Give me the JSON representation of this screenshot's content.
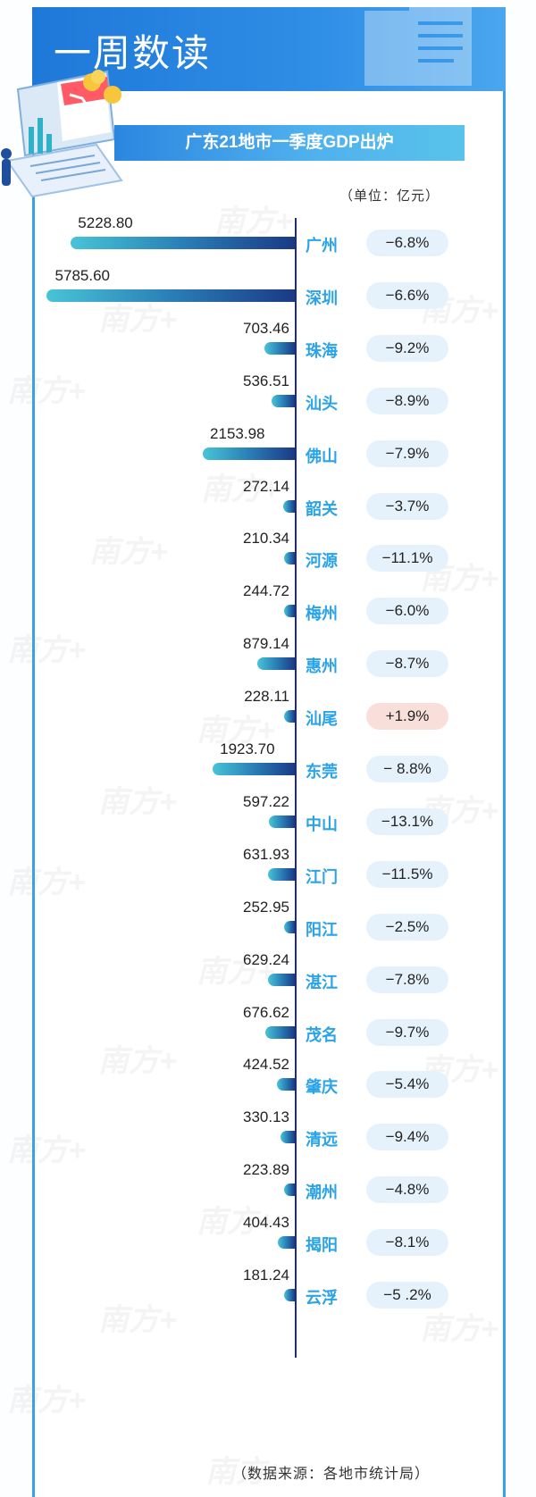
{
  "header": {
    "title": "一周数读"
  },
  "banner": {
    "title": "广东21地市一季度GDP出炉"
  },
  "unit_note": "（单位：亿元）",
  "source_note": "（数据来源：各地市统计局）",
  "watermark": "南方+",
  "colors": {
    "header_blue": "#1e78d8",
    "banner_start": "#2b86e0",
    "banner_end": "#59c3ea",
    "bar_start": "#48c4d6",
    "bar_end": "#1a3a86",
    "city_text": "#2aa3e8",
    "pill_negative": "#e6f2fb",
    "pill_positive": "#f8dfd9"
  },
  "chart_data": {
    "type": "bar",
    "orientation": "horizontal",
    "title": "广东21地市一季度GDP出炉",
    "unit": "（单位：亿元）",
    "categories": [
      "广州",
      "深圳",
      "珠海",
      "汕头",
      "佛山",
      "韶关",
      "河源",
      "梅州",
      "惠州",
      "汕尾",
      "东莞",
      "中山",
      "江门",
      "阳江",
      "湛江",
      "茂名",
      "肇庆",
      "清远",
      "潮州",
      "揭阳",
      "云浮"
    ],
    "values": [
      5228.8,
      5785.6,
      703.46,
      536.51,
      2153.98,
      272.14,
      210.34,
      244.72,
      879.14,
      228.11,
      1923.7,
      597.22,
      631.93,
      252.95,
      629.24,
      676.62,
      424.52,
      330.13,
      223.89,
      404.43,
      181.24
    ],
    "value_labels": [
      "5228.80",
      "5785.60",
      "703.46",
      "536.51",
      "2153.98",
      "272.14",
      "210.34",
      "244.72",
      "879.14",
      "228.11",
      "1923.70",
      "597.22",
      "631.93",
      "252.95",
      "629.24",
      "676.62",
      "424.52",
      "330.13",
      "223.89",
      "404.43",
      "181.24"
    ],
    "growth_labels": [
      "−6.8%",
      "−6.6%",
      "−9.2%",
      "−8.9%",
      "−7.9%",
      "−3.7%",
      "−11.1%",
      "−6.0%",
      "−8.7%",
      "+1.9%",
      "− 8.8%",
      "−13.1%",
      "−11.5%",
      "−2.5%",
      "−7.8%",
      "−9.7%",
      "−5.4%",
      "−9.4%",
      "−4.8%",
      "−8.1%",
      "−5 .2%"
    ],
    "growth_values": [
      -6.8,
      -6.6,
      -9.2,
      -8.9,
      -7.9,
      -3.7,
      -11.1,
      -6.0,
      -8.7,
      1.9,
      -8.8,
      -13.1,
      -11.5,
      -2.5,
      -7.8,
      -9.7,
      -5.4,
      -9.4,
      -4.8,
      -8.1,
      -5.2
    ],
    "xlim": [
      0,
      5785.6
    ],
    "grid": false
  }
}
